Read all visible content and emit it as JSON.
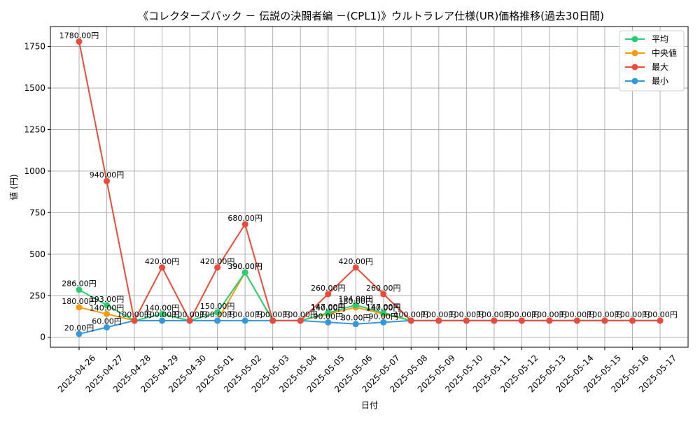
{
  "chart_data": {
    "type": "line",
    "title": "《コレクターズパック － 伝説の決闘者編 －(CPL1)》ウルトラレア仕様(UR)価格推移(過去30日間)",
    "xlabel": "日付",
    "ylabel": "値 (円)",
    "ylim": [
      -60,
      1870
    ],
    "yticks": [
      0,
      250,
      500,
      750,
      1000,
      1250,
      1500,
      1750
    ],
    "grid": true,
    "legend_position": "top-right",
    "categories": [
      "2025-04-26",
      "2025-04-27",
      "2025-04-28",
      "2025-04-29",
      "2025-04-30",
      "2025-05-01",
      "2025-05-02",
      "2025-05-03",
      "2025-05-04",
      "2025-05-05",
      "2025-05-06",
      "2025-05-07",
      "2025-05-08",
      "2025-05-09",
      "2025-05-10",
      "2025-05-11",
      "2025-05-12",
      "2025-05-13",
      "2025-05-14",
      "2025-05-15",
      "2025-05-16",
      "2025-05-17"
    ],
    "series": [
      {
        "name": "平均",
        "color": "#2ecc71",
        "values": [
          286,
          193,
          100,
          140,
          100,
          150,
          390,
          100,
          100,
          147,
          194,
          147,
          100,
          100,
          100,
          100,
          100,
          100,
          100,
          100,
          100,
          100
        ]
      },
      {
        "name": "中央値",
        "color": "#f39c12",
        "values": [
          180,
          140,
          100,
          100,
          100,
          100,
          390,
          100,
          100,
          140,
          180,
          140,
          100,
          100,
          100,
          100,
          100,
          100,
          100,
          100,
          100,
          100
        ]
      },
      {
        "name": "最大",
        "color": "#e74c3c",
        "values": [
          1780,
          940,
          100,
          420,
          100,
          420,
          680,
          100,
          100,
          260,
          420,
          260,
          100,
          100,
          100,
          100,
          100,
          100,
          100,
          100,
          100,
          100
        ]
      },
      {
        "name": "最小",
        "color": "#3498db",
        "values": [
          20,
          60,
          100,
          100,
          100,
          100,
          100,
          100,
          100,
          90,
          80,
          90,
          100,
          100,
          100,
          100,
          100,
          100,
          100,
          100,
          100,
          100
        ]
      }
    ],
    "data_labels": [
      {
        "series": 0,
        "index": 0,
        "text": "286.00円"
      },
      {
        "series": 0,
        "index": 1,
        "text": "193.00円"
      },
      {
        "series": 0,
        "index": 3,
        "text": "140.00円"
      },
      {
        "series": 0,
        "index": 5,
        "text": "150.00円"
      },
      {
        "series": 0,
        "index": 6,
        "text": "390.00円"
      },
      {
        "series": 0,
        "index": 9,
        "text": "147.00円"
      },
      {
        "series": 0,
        "index": 10,
        "text": "194.00円"
      },
      {
        "series": 0,
        "index": 11,
        "text": "147.00円"
      },
      {
        "series": 1,
        "index": 0,
        "text": "180.00円"
      },
      {
        "series": 1,
        "index": 1,
        "text": "140.00円"
      },
      {
        "series": 1,
        "index": 6,
        "text": "390.00円"
      },
      {
        "series": 1,
        "index": 9,
        "text": "140.00円"
      },
      {
        "series": 1,
        "index": 10,
        "text": "180.00円"
      },
      {
        "series": 1,
        "index": 11,
        "text": "140.00円"
      },
      {
        "series": 2,
        "index": 0,
        "text": "1780.00円"
      },
      {
        "series": 2,
        "index": 1,
        "text": "940.00円"
      },
      {
        "series": 2,
        "index": 3,
        "text": "420.00円"
      },
      {
        "series": 2,
        "index": 5,
        "text": "420.00円"
      },
      {
        "series": 2,
        "index": 6,
        "text": "680.00円"
      },
      {
        "series": 2,
        "index": 9,
        "text": "260.00円"
      },
      {
        "series": 2,
        "index": 10,
        "text": "420.00円"
      },
      {
        "series": 2,
        "index": 11,
        "text": "260.00円"
      },
      {
        "series": 3,
        "index": 0,
        "text": "20.00円"
      },
      {
        "series": 3,
        "index": 1,
        "text": "60.00円"
      },
      {
        "series": 3,
        "index": 2,
        "text": "100.00円"
      },
      {
        "series": 3,
        "index": 3,
        "text": "100.00円"
      },
      {
        "series": 3,
        "index": 4,
        "text": "100.00円"
      },
      {
        "series": 3,
        "index": 5,
        "text": "100.00円"
      },
      {
        "series": 3,
        "index": 6,
        "text": "100.00円"
      },
      {
        "series": 3,
        "index": 7,
        "text": "100.00円"
      },
      {
        "series": 3,
        "index": 8,
        "text": "100.00円"
      },
      {
        "series": 3,
        "index": 9,
        "text": "90.00円"
      },
      {
        "series": 3,
        "index": 10,
        "text": "80.00円"
      },
      {
        "series": 3,
        "index": 11,
        "text": "90.00円"
      },
      {
        "series": 3,
        "index": 12,
        "text": "100.00円"
      },
      {
        "series": 3,
        "index": 13,
        "text": "100.00円"
      },
      {
        "series": 3,
        "index": 14,
        "text": "100.00円"
      },
      {
        "series": 3,
        "index": 15,
        "text": "100.00円"
      },
      {
        "series": 3,
        "index": 16,
        "text": "100.00円"
      },
      {
        "series": 3,
        "index": 17,
        "text": "100.00円"
      },
      {
        "series": 3,
        "index": 18,
        "text": "100.00円"
      },
      {
        "series": 3,
        "index": 19,
        "text": "100.00円"
      },
      {
        "series": 3,
        "index": 20,
        "text": "100.00円"
      },
      {
        "series": 3,
        "index": 21,
        "text": "100.00円"
      }
    ]
  }
}
